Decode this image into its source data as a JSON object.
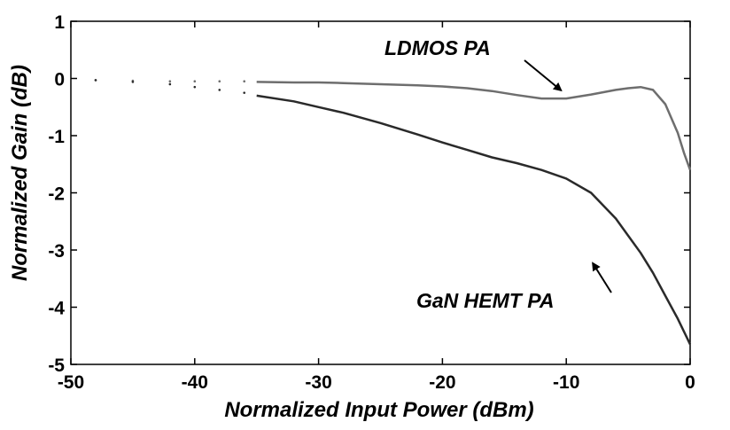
{
  "chart_data": {
    "type": "line",
    "title": "",
    "xlabel": "Normalized Input Power (dBm)",
    "ylabel": "Normalized Gain (dB)",
    "xlim": [
      -50,
      0
    ],
    "ylim": [
      -5,
      1
    ],
    "xticks": [
      -50,
      -40,
      -30,
      -20,
      -10,
      0
    ],
    "yticks": [
      1,
      0,
      -1,
      -2,
      -3,
      -4,
      -5
    ],
    "grid": false,
    "legend": "none",
    "colors": {
      "ldmos": "#6e6e6e",
      "gan": "#2a2a2a"
    },
    "series": [
      {
        "name": "LDMOS PA",
        "x": [
          -48,
          -45,
          -42,
          -40,
          -38,
          -36,
          -35,
          -32,
          -30,
          -28,
          -25,
          -22,
          -20,
          -18,
          -16,
          -14,
          -12,
          -10,
          -8,
          -6,
          -5,
          -4,
          -3,
          -2,
          -1,
          -0.5,
          0
        ],
        "y": [
          -0.03,
          -0.04,
          -0.05,
          -0.05,
          -0.05,
          -0.05,
          -0.06,
          -0.07,
          -0.07,
          -0.08,
          -0.1,
          -0.12,
          -0.14,
          -0.17,
          -0.22,
          -0.29,
          -0.35,
          -0.35,
          -0.28,
          -0.2,
          -0.17,
          -0.15,
          -0.2,
          -0.45,
          -0.95,
          -1.3,
          -1.6
        ]
      },
      {
        "name": "GaN HEMT PA",
        "x": [
          -48,
          -45,
          -42,
          -40,
          -38,
          -36,
          -35,
          -32,
          -30,
          -28,
          -25,
          -22,
          -20,
          -18,
          -16,
          -14,
          -12,
          -10,
          -8,
          -6,
          -5,
          -4,
          -3,
          -2,
          -1,
          0
        ],
        "y": [
          -0.03,
          -0.06,
          -0.1,
          -0.15,
          -0.2,
          -0.25,
          -0.3,
          -0.4,
          -0.5,
          -0.6,
          -0.78,
          -0.98,
          -1.12,
          -1.25,
          -1.38,
          -1.48,
          -1.6,
          -1.75,
          -2.0,
          -2.45,
          -2.75,
          -3.05,
          -3.4,
          -3.8,
          -4.2,
          -4.65
        ]
      }
    ],
    "annotations": [
      {
        "text": "LDMOS PA",
        "points_to": {
          "x": -11,
          "y": -0.3
        }
      },
      {
        "text": "GaN HEMT PA",
        "points_to": {
          "x": -8,
          "y": -3.2
        }
      }
    ]
  }
}
